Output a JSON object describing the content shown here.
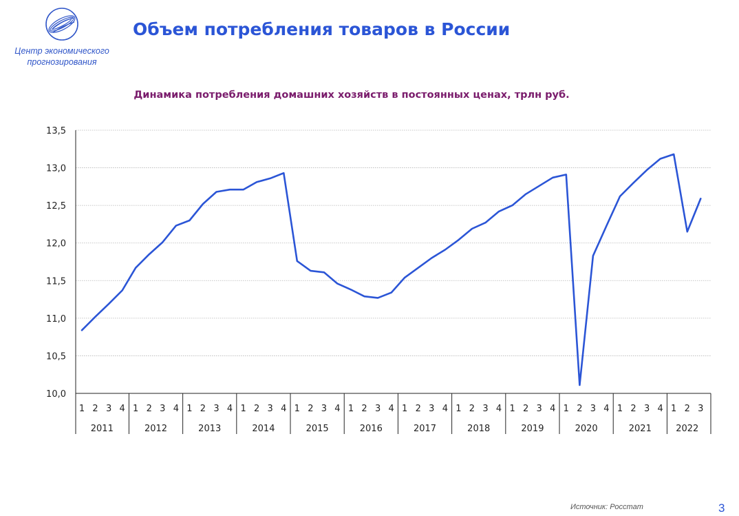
{
  "logo": {
    "line1": "Центр экономического",
    "line2": "прогнозирования"
  },
  "page_title": "Объем потребления товаров в России",
  "page_number": "3",
  "source": "Источник: Росстат",
  "colors": {
    "line": "#2b55d6",
    "title": "#2b55d6",
    "chart_title": "#7a1c6c"
  },
  "chart_data": {
    "type": "line",
    "title": "Динамика потребления домашних хозяйств в постоянных ценах, трлн руб.",
    "xlabel": "",
    "ylabel": "",
    "ylim": [
      10.0,
      13.5
    ],
    "yticks": [
      "10,0",
      "10,5",
      "11,0",
      "11,5",
      "12,0",
      "12,5",
      "13,0",
      "13,5"
    ],
    "grid": true,
    "legend": "none",
    "years": [
      {
        "label": "2011",
        "quarters": [
          "1",
          "2",
          "3",
          "4"
        ]
      },
      {
        "label": "2012",
        "quarters": [
          "1",
          "2",
          "3",
          "4"
        ]
      },
      {
        "label": "2013",
        "quarters": [
          "1",
          "2",
          "3",
          "4"
        ]
      },
      {
        "label": "2014",
        "quarters": [
          "1",
          "2",
          "3",
          "4"
        ]
      },
      {
        "label": "2015",
        "quarters": [
          "1",
          "2",
          "3",
          "4"
        ]
      },
      {
        "label": "2016",
        "quarters": [
          "1",
          "2",
          "3",
          "4"
        ]
      },
      {
        "label": "2017",
        "quarters": [
          "1",
          "2",
          "3",
          "4"
        ]
      },
      {
        "label": "2018",
        "quarters": [
          "1",
          "2",
          "3",
          "4"
        ]
      },
      {
        "label": "2019",
        "quarters": [
          "1",
          "2",
          "3",
          "4"
        ]
      },
      {
        "label": "2020",
        "quarters": [
          "1",
          "2",
          "3",
          "4"
        ]
      },
      {
        "label": "2021",
        "quarters": [
          "1",
          "2",
          "3",
          "4"
        ]
      },
      {
        "label": "2022",
        "quarters": [
          "1",
          "2",
          "3"
        ]
      }
    ],
    "series": [
      {
        "values": [
          10.84,
          11.02,
          11.19,
          11.37,
          11.67,
          11.85,
          12.01,
          12.23,
          12.3,
          12.52,
          12.68,
          12.71,
          12.71,
          12.81,
          12.86,
          12.93,
          11.76,
          11.63,
          11.61,
          11.46,
          11.38,
          11.29,
          11.27,
          11.34,
          11.54,
          11.67,
          11.8,
          11.91,
          12.04,
          12.19,
          12.27,
          12.42,
          12.5,
          12.65,
          12.76,
          12.87,
          12.91,
          10.11,
          11.83,
          12.23,
          12.62,
          12.8,
          12.97,
          13.12,
          13.18,
          12.15,
          12.59
        ]
      }
    ]
  }
}
